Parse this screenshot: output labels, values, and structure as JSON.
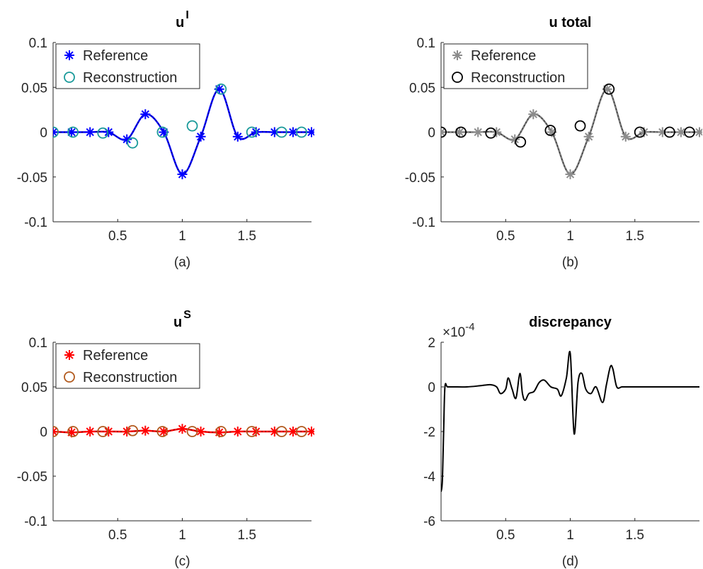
{
  "chart_data": [
    {
      "type": "line",
      "panel_label": "(a)",
      "title_base": "u",
      "title_sup": "I",
      "xlim": [
        0,
        2
      ],
      "ylim": [
        -0.1,
        0.1
      ],
      "xticks": [
        0.5,
        1,
        1.5
      ],
      "xtick_labels": [
        "0.5",
        "1",
        "1.5"
      ],
      "yticks": [
        -0.1,
        -0.05,
        0,
        0.05,
        0.1
      ],
      "ytick_labels": [
        "-0.1",
        "-0.05",
        "0",
        "0.05",
        "0.1"
      ],
      "legend": {
        "position": "top-left",
        "entries": [
          "Reference",
          "Reconstruction"
        ]
      },
      "series": [
        {
          "name": "Reference",
          "marker": "asterisk",
          "color": "#0000FF",
          "line_color": "#0000FF",
          "x": [
            0.0,
            0.143,
            0.286,
            0.429,
            0.571,
            0.714,
            0.857,
            1.0,
            1.143,
            1.286,
            1.429,
            1.571,
            1.714,
            1.857,
            2.0
          ],
          "y": [
            0,
            0,
            0,
            0,
            -0.008,
            0.02,
            0,
            -0.047,
            -0.005,
            0.048,
            -0.005,
            0,
            0,
            0,
            0
          ]
        },
        {
          "name": "Reconstruction",
          "marker": "circle",
          "color": "#1A9A9A",
          "x": [
            0.0,
            0.154,
            0.385,
            0.615,
            0.846,
            1.077,
            1.3,
            1.538,
            1.769,
            1.923
          ],
          "y": [
            0,
            0,
            -0.001,
            -0.012,
            0,
            0.007,
            0.048,
            0,
            0,
            0
          ]
        }
      ]
    },
    {
      "type": "line",
      "panel_label": "(b)",
      "title_base": "u  total",
      "title_sup": "",
      "xlim": [
        0,
        2
      ],
      "ylim": [
        -0.1,
        0.1
      ],
      "xticks": [
        0.5,
        1,
        1.5
      ],
      "xtick_labels": [
        "0.5",
        "1",
        "1.5"
      ],
      "yticks": [
        -0.1,
        -0.05,
        0,
        0.05,
        0.1
      ],
      "ytick_labels": [
        "-0.1",
        "-0.05",
        "0",
        "0.05",
        "0.1"
      ],
      "legend": {
        "position": "top-left",
        "entries": [
          "Reference",
          "Reconstruction"
        ]
      },
      "series": [
        {
          "name": "Reference",
          "marker": "asterisk",
          "color": "#8C8C8C",
          "line_color": "#7A7A7A",
          "x": [
            0.0,
            0.143,
            0.286,
            0.429,
            0.571,
            0.714,
            0.857,
            1.0,
            1.143,
            1.286,
            1.429,
            1.571,
            1.714,
            1.857,
            2.0
          ],
          "y": [
            0,
            0,
            0,
            0,
            -0.008,
            0.02,
            0,
            -0.047,
            -0.005,
            0.048,
            -0.005,
            0,
            0,
            0,
            0
          ]
        },
        {
          "name": "Reconstruction",
          "marker": "circle",
          "color": "#000000",
          "x": [
            0.0,
            0.154,
            0.385,
            0.615,
            0.846,
            1.077,
            1.3,
            1.538,
            1.769,
            1.923
          ],
          "y": [
            0,
            0,
            -0.001,
            -0.011,
            0.002,
            0.007,
            0.048,
            0,
            0,
            0
          ]
        }
      ]
    },
    {
      "type": "line",
      "panel_label": "(c)",
      "title_base": "u",
      "title_sup": "S",
      "xlim": [
        0,
        2
      ],
      "ylim": [
        -0.1,
        0.1
      ],
      "xticks": [
        0.5,
        1,
        1.5
      ],
      "xtick_labels": [
        "0.5",
        "1",
        "1.5"
      ],
      "yticks": [
        -0.1,
        -0.05,
        0,
        0.05,
        0.1
      ],
      "ytick_labels": [
        "-0.1",
        "-0.05",
        "0",
        "0.05",
        "0.1"
      ],
      "legend": {
        "position": "top-left",
        "entries": [
          "Reference",
          "Reconstruction"
        ]
      },
      "series": [
        {
          "name": "Reference",
          "marker": "asterisk",
          "color": "#FF0000",
          "line_color": "#FF0000",
          "x": [
            0.0,
            0.143,
            0.286,
            0.429,
            0.571,
            0.714,
            0.857,
            1.0,
            1.143,
            1.286,
            1.429,
            1.571,
            1.714,
            1.857,
            2.0
          ],
          "y": [
            0,
            -0.001,
            0,
            0,
            0,
            0.001,
            0,
            0.003,
            0,
            -0.001,
            0,
            0,
            0,
            0,
            0
          ]
        },
        {
          "name": "Reconstruction",
          "marker": "circle",
          "color": "#B25A1E",
          "x": [
            0.0,
            0.154,
            0.385,
            0.615,
            0.846,
            1.077,
            1.3,
            1.538,
            1.769,
            1.923
          ],
          "y": [
            0,
            0,
            0,
            0.001,
            0,
            0,
            0,
            0,
            0,
            0
          ]
        }
      ]
    },
    {
      "type": "line",
      "panel_label": "(d)",
      "title_base": "discrepancy",
      "title_sup": "",
      "exponent_label": "×10",
      "exponent_power": "-4",
      "xlim": [
        0,
        2
      ],
      "ylim": [
        -6,
        2
      ],
      "xticks": [
        0.5,
        1,
        1.5
      ],
      "xtick_labels": [
        "0.5",
        "1",
        "1.5"
      ],
      "yticks": [
        -6,
        -4,
        -2,
        0,
        2
      ],
      "ytick_labels": [
        "-6",
        "-4",
        "-2",
        "0",
        "2"
      ],
      "series": [
        {
          "color": "#000000",
          "x": [
            0.0,
            0.01,
            0.02,
            0.03,
            0.05,
            0.1,
            0.2,
            0.3,
            0.38,
            0.43,
            0.46,
            0.5,
            0.52,
            0.55,
            0.58,
            0.61,
            0.63,
            0.65,
            0.68,
            0.72,
            0.76,
            0.8,
            0.85,
            0.9,
            0.93,
            0.97,
            1.0,
            1.03,
            1.06,
            1.09,
            1.12,
            1.16,
            1.2,
            1.25,
            1.28,
            1.31,
            1.33,
            1.36,
            1.4,
            1.45,
            1.5,
            2.0
          ],
          "y": [
            -4.7,
            -4.2,
            -2.0,
            0.0,
            0.0,
            0.0,
            0.0,
            0.05,
            0.1,
            0.0,
            -0.3,
            -0.1,
            0.4,
            -0.1,
            -0.5,
            0.6,
            -0.3,
            -0.6,
            -0.3,
            -0.2,
            0.2,
            0.3,
            0.0,
            -0.1,
            -0.4,
            0.4,
            1.5,
            -2.1,
            0.2,
            0.6,
            -0.1,
            -0.3,
            0.0,
            -0.7,
            0.1,
            0.9,
            0.8,
            0.0,
            0.0,
            0.0,
            0.0,
            0.0
          ]
        }
      ]
    }
  ]
}
